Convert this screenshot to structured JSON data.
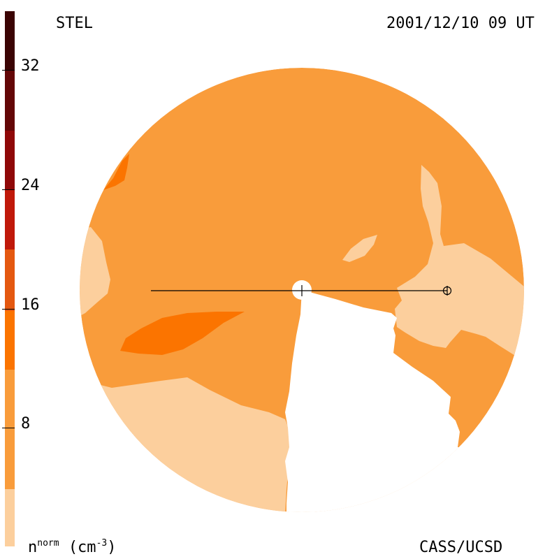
{
  "header": {
    "left_label": "STEL",
    "right_label": "2001/12/10 09 UT"
  },
  "footer": {
    "units_label": {
      "base": "n",
      "sup": "norm",
      "paren_open": "(cm",
      "exp": "-3",
      "paren_close": ")"
    },
    "credit": "CASS/UCSD"
  },
  "colorbar": {
    "ticks": [
      "8",
      "16",
      "24",
      "32"
    ],
    "colors": [
      "#fccf9d",
      "#f99c3b",
      "#fb7400",
      "#e45810",
      "#c0190a",
      "#8f0808",
      "#640707",
      "#3b0404",
      "#1f0202"
    ]
  },
  "map_colors": {
    "background_density": "#f99c3b",
    "low_density": "#fccf9d",
    "high_density": "#fb7400"
  }
}
